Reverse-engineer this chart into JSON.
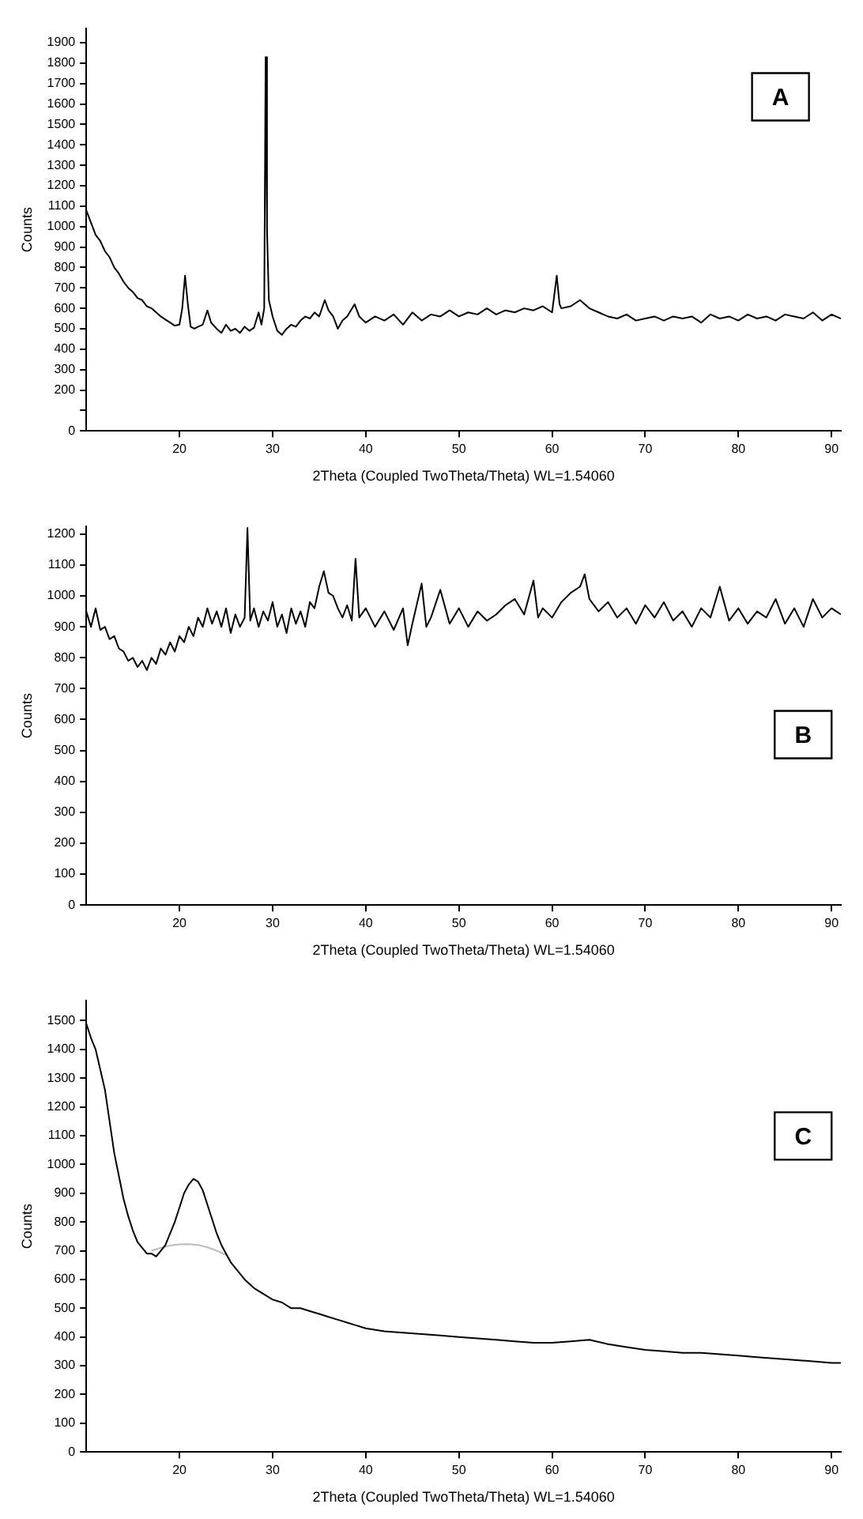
{
  "chart_data": [
    {
      "type": "line",
      "xlabel": "2Theta (Coupled TwoTheta/Theta) WL=1.54060",
      "ylabel": "Counts",
      "annotations": [
        "A"
      ],
      "xlim": [
        10,
        91
      ],
      "ylim": [
        0,
        1970
      ],
      "xticks": [
        20,
        30,
        40,
        50,
        60,
        70,
        80,
        90
      ],
      "yticks": [
        0,
        {
          "value": 100,
          "label": null
        },
        200,
        300,
        400,
        500,
        600,
        700,
        800,
        900,
        1000,
        1100,
        1200,
        1300,
        1400,
        1500,
        1600,
        1700,
        1800,
        1900
      ],
      "grid": false,
      "legend": false,
      "marker": "none",
      "line_style": "solid",
      "series": [
        {
          "color": "#000000",
          "x": [
            10,
            10.5,
            11,
            11.5,
            12,
            12.5,
            13,
            13.5,
            14,
            14.5,
            15,
            15.5,
            16,
            16.5,
            17,
            17.5,
            18,
            18.5,
            19,
            19.5,
            20,
            20.3,
            20.6,
            20.9,
            21.2,
            21.6,
            22,
            22.5,
            23,
            23.4,
            24,
            24.5,
            25,
            25.5,
            26,
            26.5,
            27,
            27.5,
            28,
            28.5,
            28.8,
            29.1,
            29.25,
            29.4,
            29.6,
            30,
            30.5,
            31,
            31.5,
            32,
            32.5,
            33,
            33.5,
            34,
            34.5,
            35,
            35.6,
            36,
            36.5,
            37,
            37.5,
            38,
            38.8,
            39.3,
            40,
            41,
            42,
            43,
            44,
            45,
            46,
            47,
            48,
            49,
            50,
            51,
            52,
            53,
            54,
            55,
            56,
            57,
            58,
            59,
            60,
            60.5,
            60.8,
            61,
            62,
            63,
            64,
            65,
            66,
            67,
            68,
            69,
            70,
            71,
            72,
            73,
            74,
            75,
            76,
            77,
            78,
            79,
            80,
            81,
            82,
            83,
            84,
            85,
            86,
            87,
            88,
            89,
            90,
            91
          ],
          "values": [
            1080,
            1020,
            960,
            930,
            880,
            850,
            800,
            770,
            730,
            700,
            680,
            650,
            640,
            610,
            600,
            580,
            560,
            545,
            530,
            515,
            520,
            600,
            760,
            620,
            510,
            500,
            510,
            520,
            590,
            530,
            500,
            480,
            520,
            490,
            500,
            480,
            510,
            490,
            505,
            580,
            520,
            600,
            1830,
            980,
            640,
            560,
            490,
            470,
            500,
            520,
            510,
            540,
            560,
            550,
            580,
            560,
            640,
            590,
            560,
            500,
            540,
            560,
            620,
            560,
            530,
            560,
            540,
            570,
            520,
            580,
            540,
            570,
            560,
            590,
            560,
            580,
            570,
            600,
            570,
            590,
            580,
            600,
            590,
            610,
            580,
            760,
            620,
            600,
            610,
            640,
            600,
            580,
            560,
            550,
            570,
            540,
            550,
            560,
            540,
            560,
            550,
            560,
            530,
            570,
            550,
            560,
            540,
            570,
            550,
            560,
            540,
            570,
            560,
            550,
            580,
            540,
            570,
            550
          ]
        }
      ]
    },
    {
      "type": "line",
      "xlabel": "2Theta (Coupled TwoTheta/Theta) WL=1.54060",
      "ylabel": "Counts",
      "annotations": [
        "B"
      ],
      "xlim": [
        10,
        91
      ],
      "ylim": [
        0,
        1225
      ],
      "xticks": [
        20,
        30,
        40,
        50,
        60,
        70,
        80,
        90
      ],
      "yticks": [
        0,
        100,
        200,
        300,
        400,
        500,
        600,
        700,
        800,
        900,
        1000,
        1100,
        1200
      ],
      "grid": false,
      "legend": false,
      "marker": "none",
      "line_style": "solid",
      "series": [
        {
          "color": "#000000",
          "x": [
            10,
            10.5,
            11,
            11.5,
            12,
            12.5,
            13,
            13.5,
            14,
            14.5,
            15,
            15.5,
            16,
            16.5,
            17,
            17.5,
            18,
            18.5,
            19,
            19.5,
            20,
            20.5,
            21,
            21.5,
            22,
            22.5,
            23,
            23.5,
            24,
            24.5,
            25,
            25.5,
            26,
            26.5,
            27,
            27.3,
            27.6,
            28,
            28.5,
            29,
            29.5,
            30,
            30.5,
            31,
            31.5,
            32,
            32.5,
            33,
            33.5,
            34,
            34.5,
            35,
            35.5,
            36,
            36.5,
            37,
            37.5,
            38,
            38.5,
            38.9,
            39.3,
            40,
            41,
            42,
            43,
            44,
            44.5,
            45,
            46,
            46.5,
            47,
            48,
            49,
            50,
            51,
            52,
            53,
            54,
            55,
            56,
            57,
            58,
            58.5,
            59,
            60,
            61,
            62,
            63,
            63.5,
            64,
            65,
            66,
            67,
            68,
            69,
            70,
            71,
            72,
            73,
            74,
            75,
            76,
            77,
            78,
            79,
            80,
            81,
            82,
            83,
            84,
            85,
            86,
            87,
            88,
            89,
            90,
            91
          ],
          "values": [
            950,
            900,
            960,
            890,
            900,
            860,
            870,
            830,
            820,
            790,
            800,
            770,
            790,
            760,
            800,
            780,
            830,
            810,
            850,
            820,
            870,
            850,
            900,
            870,
            930,
            900,
            960,
            910,
            950,
            900,
            960,
            880,
            940,
            900,
            930,
            1220,
            920,
            960,
            900,
            950,
            920,
            980,
            900,
            940,
            880,
            960,
            910,
            950,
            900,
            980,
            960,
            1030,
            1080,
            1010,
            1000,
            960,
            930,
            970,
            920,
            1120,
            930,
            960,
            900,
            950,
            890,
            960,
            840,
            910,
            1040,
            900,
            930,
            1020,
            910,
            960,
            900,
            950,
            920,
            940,
            970,
            990,
            940,
            1050,
            930,
            960,
            930,
            980,
            1010,
            1030,
            1070,
            990,
            950,
            980,
            930,
            960,
            910,
            970,
            930,
            980,
            920,
            950,
            900,
            960,
            930,
            1030,
            920,
            960,
            910,
            950,
            930,
            990,
            910,
            960,
            900,
            990,
            930,
            960,
            940
          ]
        }
      ]
    },
    {
      "type": "line",
      "xlabel": "2Theta (Coupled TwoTheta/Theta) WL=1.54060",
      "ylabel": "Counts",
      "annotations": [
        "C"
      ],
      "xlim": [
        10,
        91
      ],
      "ylim": [
        0,
        1570
      ],
      "xticks": [
        20,
        30,
        40,
        50,
        60,
        70,
        80,
        90
      ],
      "yticks": [
        0,
        100,
        200,
        300,
        400,
        500,
        600,
        700,
        800,
        900,
        1000,
        1100,
        1200,
        1300,
        1400,
        1500
      ],
      "grid": false,
      "legend": false,
      "marker": "none",
      "line_style": "solid",
      "series": [
        {
          "color": "#000000",
          "x": [
            10,
            10.5,
            11,
            11.5,
            12,
            12.5,
            13,
            13.5,
            14,
            14.5,
            15,
            15.5,
            16,
            16.5,
            17,
            17.5,
            18,
            18.5,
            19,
            19.5,
            20,
            20.5,
            21,
            21.5,
            22,
            22.5,
            23,
            23.5,
            24,
            24.5,
            25,
            25.5,
            26,
            26.5,
            27,
            28,
            29,
            30,
            31,
            32,
            33,
            34,
            35,
            36,
            37,
            38,
            39,
            40,
            42,
            44,
            46,
            48,
            50,
            52,
            54,
            56,
            58,
            60,
            62,
            64,
            66,
            68,
            70,
            72,
            74,
            76,
            78,
            80,
            82,
            84,
            86,
            88,
            90,
            91
          ],
          "values": [
            1490,
            1440,
            1400,
            1330,
            1260,
            1150,
            1040,
            960,
            880,
            820,
            770,
            730,
            710,
            690,
            690,
            680,
            700,
            720,
            760,
            800,
            850,
            900,
            930,
            950,
            940,
            910,
            860,
            810,
            760,
            720,
            690,
            660,
            640,
            620,
            600,
            570,
            550,
            530,
            520,
            500,
            500,
            490,
            480,
            470,
            460,
            450,
            440,
            430,
            420,
            415,
            410,
            405,
            400,
            395,
            390,
            385,
            380,
            380,
            385,
            390,
            375,
            365,
            355,
            350,
            345,
            345,
            340,
            335,
            330,
            325,
            320,
            315,
            310,
            310
          ]
        },
        {
          "color": "#bbbbbb",
          "x": [
            17,
            18,
            19,
            20,
            21,
            22,
            23,
            24,
            25
          ],
          "values": [
            700,
            710,
            718,
            722,
            723,
            720,
            712,
            700,
            685
          ]
        }
      ]
    }
  ]
}
